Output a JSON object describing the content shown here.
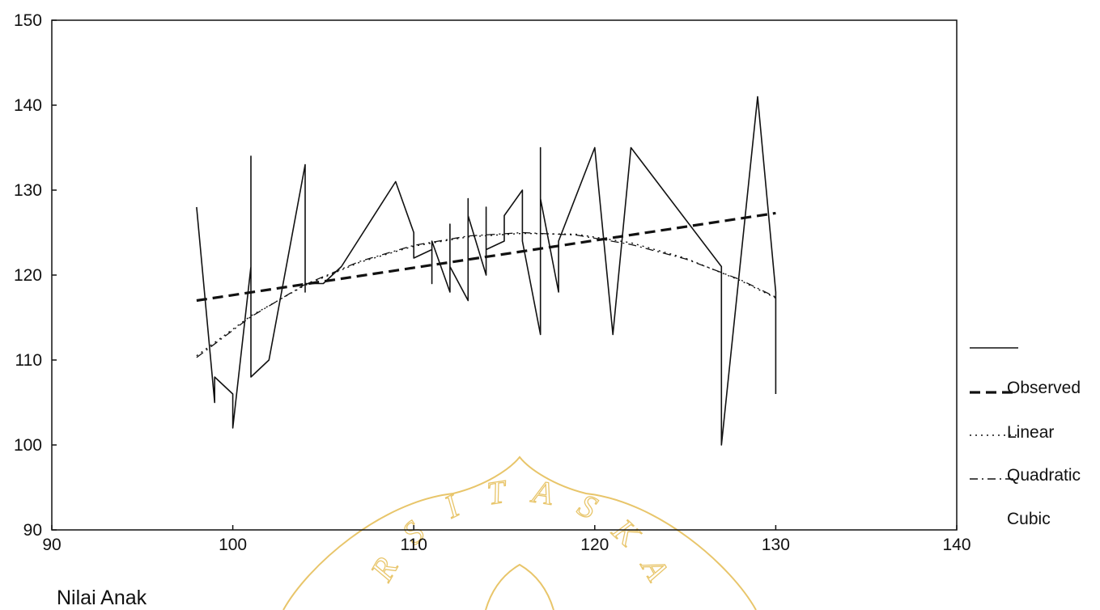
{
  "chart_data": {
    "type": "line",
    "title": "",
    "xlabel": "Nilai Anak",
    "ylabel": "",
    "xlim": [
      90,
      140
    ],
    "ylim": [
      90,
      150
    ],
    "xticks": [
      90,
      100,
      110,
      120,
      130,
      140
    ],
    "yticks": [
      90,
      100,
      110,
      120,
      130,
      140,
      150
    ],
    "grid": false,
    "legend_position": "right",
    "series": [
      {
        "name": "Observed",
        "style": "solid",
        "x": [
          98,
          99,
          99,
          100,
          100,
          101,
          101,
          101,
          102,
          104,
          104,
          104,
          105,
          106,
          109,
          110,
          110,
          111,
          111,
          111,
          112,
          112,
          112,
          113,
          113,
          113,
          114,
          114,
          114,
          115,
          115,
          116,
          116,
          117,
          117,
          117,
          118,
          118,
          120,
          121,
          122,
          127,
          127,
          129,
          130,
          130
        ],
        "y": [
          128,
          105,
          108,
          106,
          102,
          121,
          134,
          108,
          110,
          133,
          118,
          119,
          119,
          121,
          131,
          125,
          122,
          123,
          119,
          124,
          118,
          126,
          121,
          117,
          129,
          127,
          120,
          128,
          123,
          124,
          127,
          130,
          124,
          113,
          135,
          129,
          118,
          124,
          135,
          113,
          135,
          121,
          100,
          141,
          118,
          106
        ]
      },
      {
        "name": "Linear",
        "style": "dashed",
        "x": [
          98,
          130
        ],
        "y": [
          117,
          127.3
        ]
      },
      {
        "name": "Quadratic",
        "style": "dotted",
        "x": [
          98,
          101,
          104,
          107,
          110,
          113,
          116,
          119,
          122,
          125,
          128,
          130
        ],
        "y": [
          110.5,
          115.2,
          118.8,
          121.5,
          123.4,
          124.5,
          124.9,
          124.8,
          123.8,
          122.0,
          119.4,
          117.3
        ]
      },
      {
        "name": "Cubic",
        "style": "dashdot",
        "x": [
          98,
          101,
          104,
          107,
          110,
          113,
          116,
          119,
          122,
          125,
          128,
          130
        ],
        "y": [
          110.3,
          115.1,
          118.9,
          121.6,
          123.5,
          124.6,
          125.0,
          124.7,
          123.6,
          121.9,
          119.5,
          117.4
        ]
      }
    ]
  },
  "watermark": {
    "letters": [
      "R",
      "S",
      "I",
      "T",
      "A",
      "S",
      "K",
      "A"
    ],
    "color": "#e8c56a"
  }
}
